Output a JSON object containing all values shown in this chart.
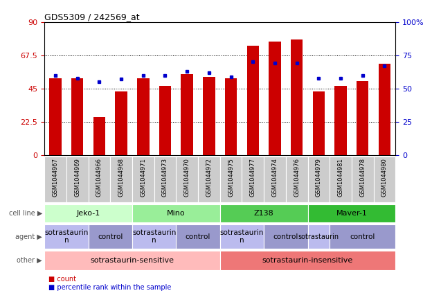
{
  "title": "GDS5309 / 242569_at",
  "samples": [
    "GSM1044967",
    "GSM1044969",
    "GSM1044966",
    "GSM1044968",
    "GSM1044971",
    "GSM1044973",
    "GSM1044970",
    "GSM1044972",
    "GSM1044975",
    "GSM1044977",
    "GSM1044974",
    "GSM1044976",
    "GSM1044979",
    "GSM1044981",
    "GSM1044978",
    "GSM1044980"
  ],
  "counts": [
    52,
    52,
    26,
    43,
    52,
    47,
    55,
    53,
    52,
    74,
    77,
    78,
    43,
    47,
    50,
    62
  ],
  "percentiles": [
    60,
    58,
    55,
    57,
    60,
    60,
    63,
    62,
    59,
    70,
    69,
    69,
    58,
    58,
    60,
    67
  ],
  "bar_color": "#cc0000",
  "dot_color": "#0000cc",
  "ylim_left": [
    0,
    90
  ],
  "ylim_right": [
    0,
    100
  ],
  "yticks_left": [
    0,
    22.5,
    45,
    67.5,
    90
  ],
  "ytick_labels_left": [
    "0",
    "22.5",
    "45",
    "67.5",
    "90"
  ],
  "yticks_right": [
    0,
    25,
    50,
    75,
    100
  ],
  "ytick_labels_right": [
    "0",
    "25",
    "50",
    "75",
    "100%"
  ],
  "cell_lines": [
    {
      "label": "Jeko-1",
      "start": 0,
      "end": 4,
      "color": "#ccffcc"
    },
    {
      "label": "Mino",
      "start": 4,
      "end": 8,
      "color": "#99ee99"
    },
    {
      "label": "Z138",
      "start": 8,
      "end": 12,
      "color": "#55cc55"
    },
    {
      "label": "Maver-1",
      "start": 12,
      "end": 16,
      "color": "#33bb33"
    }
  ],
  "agents": [
    {
      "label": "sotrastaurin\nn",
      "start": 0,
      "end": 2,
      "color": "#bbbbee"
    },
    {
      "label": "control",
      "start": 2,
      "end": 4,
      "color": "#9999cc"
    },
    {
      "label": "sotrastaurin\nn",
      "start": 4,
      "end": 6,
      "color": "#bbbbee"
    },
    {
      "label": "control",
      "start": 6,
      "end": 8,
      "color": "#9999cc"
    },
    {
      "label": "sotrastaurin\nn",
      "start": 8,
      "end": 10,
      "color": "#bbbbee"
    },
    {
      "label": "control",
      "start": 10,
      "end": 12,
      "color": "#9999cc"
    },
    {
      "label": "sotrastaurin",
      "start": 12,
      "end": 13,
      "color": "#bbbbee"
    },
    {
      "label": "control",
      "start": 13,
      "end": 16,
      "color": "#9999cc"
    }
  ],
  "others": [
    {
      "label": "sotrastaurin-sensitive",
      "start": 0,
      "end": 8,
      "color": "#ffbbbb"
    },
    {
      "label": "sotrastaurin-insensitive",
      "start": 8,
      "end": 16,
      "color": "#ee7777"
    }
  ],
  "row_labels": [
    "cell line",
    "agent",
    "other"
  ],
  "legend_count_color": "#cc0000",
  "legend_dot_color": "#0000cc",
  "tick_bg_color": "#cccccc",
  "plot_bg_color": "#ffffff"
}
